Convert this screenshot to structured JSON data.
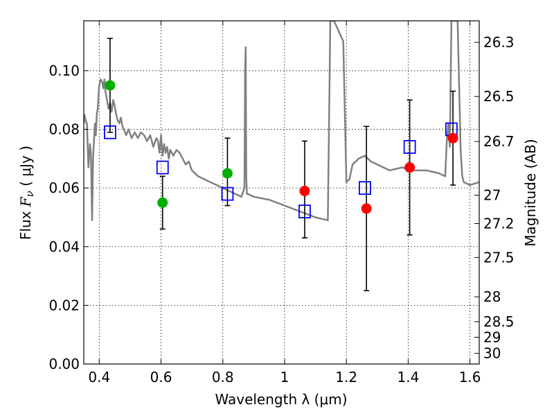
{
  "chart_data": {
    "type": "scatter",
    "title": "",
    "xlabel": "Wavelength  λ (μm)",
    "ylabel": "Flux  F_ν  ( μJy )",
    "y2label": "Magnitude (AB)",
    "xlim": [
      0.35,
      1.63
    ],
    "ylim": [
      0.0,
      0.117
    ],
    "grid": true,
    "x_ticks": [
      0.4,
      0.6,
      0.8,
      1.0,
      1.2,
      1.4,
      1.6
    ],
    "x_tick_labels": [
      "0.4",
      "0.6",
      "0.8",
      "1",
      "1.2",
      "1.4",
      "1.6"
    ],
    "y_ticks": [
      0.0,
      0.02,
      0.04,
      0.06,
      0.08,
      0.1
    ],
    "y_tick_labels": [
      "0.00",
      "0.02",
      "0.04",
      "0.06",
      "0.08",
      "0.10"
    ],
    "y2_ticks": [
      {
        "label": "26.3",
        "mag": 26.3
      },
      {
        "label": "26.5",
        "mag": 26.5
      },
      {
        "label": "26.7",
        "mag": 26.7
      },
      {
        "label": "27",
        "mag": 27.0
      },
      {
        "label": "27.2",
        "mag": 27.2
      },
      {
        "label": "27.5",
        "mag": 27.5
      },
      {
        "label": "28",
        "mag": 28.0
      },
      {
        "label": "28.5",
        "mag": 28.5
      },
      {
        "label": "29",
        "mag": 29.0
      },
      {
        "label": "30",
        "mag": 30.0
      }
    ],
    "series": [
      {
        "kind": "line",
        "color": "#808080",
        "x": [
          0.35,
          0.352,
          0.356,
          0.36,
          0.365,
          0.37,
          0.373,
          0.377,
          0.38,
          0.383,
          0.386,
          0.389,
          0.392,
          0.395,
          0.4,
          0.405,
          0.41,
          0.413,
          0.417,
          0.42,
          0.425,
          0.43,
          0.435,
          0.44,
          0.445,
          0.45,
          0.455,
          0.46,
          0.465,
          0.47,
          0.475,
          0.48,
          0.487,
          0.495,
          0.505,
          0.515,
          0.525,
          0.535,
          0.545,
          0.555,
          0.565,
          0.575,
          0.585,
          0.59,
          0.595,
          0.6,
          0.605,
          0.61,
          0.615,
          0.62,
          0.625,
          0.63,
          0.64,
          0.65,
          0.66,
          0.67,
          0.68,
          0.69,
          0.7,
          0.72,
          0.74,
          0.76,
          0.78,
          0.8,
          0.82,
          0.84,
          0.86,
          0.87,
          0.872,
          0.874,
          0.876,
          0.878,
          0.88,
          0.9,
          0.95,
          1.0,
          1.05,
          1.1,
          1.14,
          1.148,
          1.152,
          1.155,
          1.16,
          1.19,
          1.2,
          1.21,
          1.22,
          1.24,
          1.26,
          1.28,
          1.3,
          1.34,
          1.38,
          1.42,
          1.46,
          1.5,
          1.52,
          1.525,
          1.53,
          1.535,
          1.54,
          1.55,
          1.56,
          1.57,
          1.575,
          1.58,
          1.6,
          1.63
        ],
        "y": [
          0.082,
          0.085,
          0.083,
          0.082,
          0.067,
          0.075,
          0.072,
          0.049,
          0.07,
          0.076,
          0.082,
          0.078,
          0.085,
          0.087,
          0.095,
          0.097,
          0.096,
          0.094,
          0.097,
          0.093,
          0.09,
          0.087,
          0.089,
          0.086,
          0.09,
          0.088,
          0.085,
          0.083,
          0.082,
          0.084,
          0.081,
          0.08,
          0.078,
          0.08,
          0.077,
          0.079,
          0.077,
          0.079,
          0.078,
          0.076,
          0.078,
          0.074,
          0.077,
          0.076,
          0.072,
          0.078,
          0.071,
          0.075,
          0.072,
          0.074,
          0.07,
          0.073,
          0.071,
          0.073,
          0.072,
          0.07,
          0.068,
          0.069,
          0.066,
          0.064,
          0.063,
          0.062,
          0.061,
          0.06,
          0.059,
          0.058,
          0.057,
          0.06,
          0.099,
          0.108,
          0.064,
          0.058,
          0.058,
          0.057,
          0.056,
          0.054,
          0.052,
          0.05,
          0.049,
          0.117,
          0.117,
          0.117,
          0.117,
          0.11,
          0.062,
          0.063,
          0.068,
          0.07,
          0.071,
          0.069,
          0.068,
          0.066,
          0.067,
          0.066,
          0.066,
          0.065,
          0.064,
          0.076,
          0.082,
          0.074,
          0.117,
          0.117,
          0.117,
          0.073,
          0.064,
          0.062,
          0.061,
          0.062
        ]
      },
      {
        "kind": "errorbar-green",
        "color": "#00b000",
        "points": [
          {
            "x": 0.435,
            "y": 0.095,
            "yerr_low": 0.079,
            "yerr_high": 0.111
          },
          {
            "x": 0.605,
            "y": 0.055,
            "yerr_low": 0.046,
            "yerr_high": 0.064
          },
          {
            "x": 0.815,
            "y": 0.065,
            "yerr_low": 0.054,
            "yerr_high": 0.077
          }
        ]
      },
      {
        "kind": "errorbar-red",
        "color": "#ff0000",
        "points": [
          {
            "x": 1.065,
            "y": 0.059,
            "yerr_low": 0.043,
            "yerr_high": 0.076
          },
          {
            "x": 1.265,
            "y": 0.053,
            "yerr_low": 0.025,
            "yerr_high": 0.081
          },
          {
            "x": 1.405,
            "y": 0.067,
            "yerr_low": 0.044,
            "yerr_high": 0.09
          },
          {
            "x": 1.545,
            "y": 0.077,
            "yerr_low": 0.061,
            "yerr_high": 0.093
          }
        ]
      },
      {
        "kind": "squares",
        "color": "#0000ff",
        "points": [
          {
            "x": 0.435,
            "y": 0.079
          },
          {
            "x": 0.605,
            "y": 0.067
          },
          {
            "x": 0.815,
            "y": 0.058
          },
          {
            "x": 1.065,
            "y": 0.052
          },
          {
            "x": 1.26,
            "y": 0.06
          },
          {
            "x": 1.405,
            "y": 0.074
          },
          {
            "x": 1.54,
            "y": 0.08
          }
        ]
      }
    ]
  }
}
